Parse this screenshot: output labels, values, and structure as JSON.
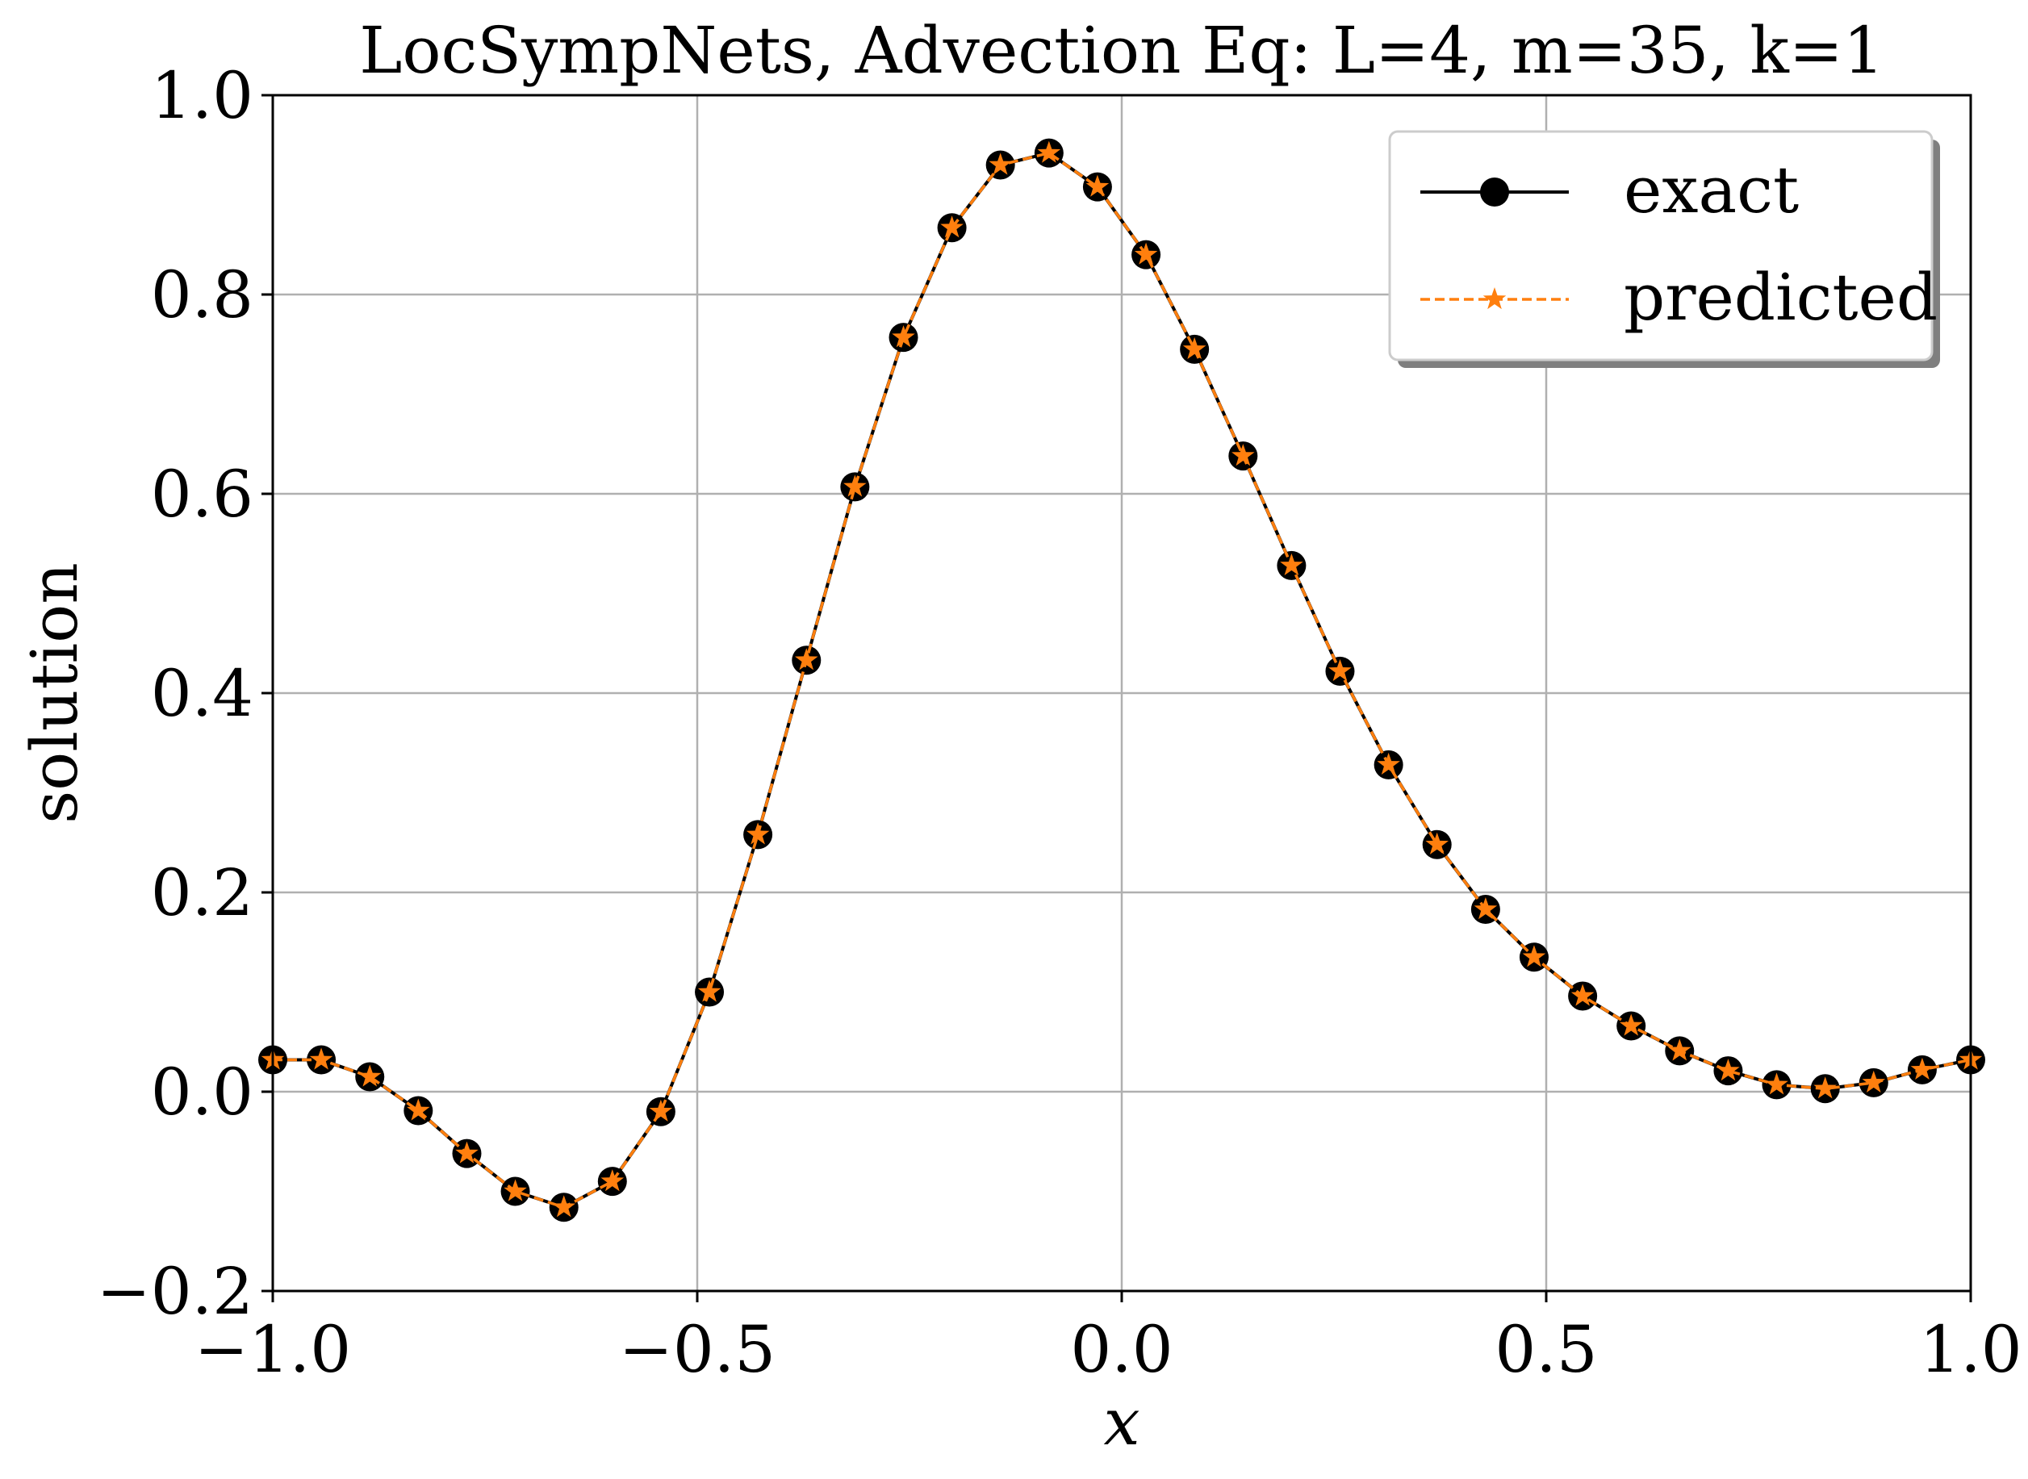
{
  "chart_data": {
    "type": "line",
    "title": "LocSympNets, Advection Eq: L=4, m=35, k=1",
    "xlabel": "x",
    "ylabel": "solution",
    "xlim": [
      -1.0,
      1.0
    ],
    "ylim": [
      -0.2,
      1.0
    ],
    "x_ticks": [
      -1.0,
      -0.5,
      0.0,
      0.5,
      1.0
    ],
    "x_tick_labels": [
      "−1.0",
      "−0.5",
      "0.0",
      "0.5",
      "1.0"
    ],
    "y_ticks": [
      -0.2,
      0.0,
      0.2,
      0.4,
      0.6,
      0.8,
      1.0
    ],
    "y_tick_labels": [
      "−0.2",
      "0.0",
      "0.2",
      "0.4",
      "0.6",
      "0.8",
      "1.0"
    ],
    "grid": true,
    "legend_position": "top-right",
    "x": [
      -1.0,
      -0.9429,
      -0.8857,
      -0.8286,
      -0.7714,
      -0.7143,
      -0.6571,
      -0.6,
      -0.5429,
      -0.4857,
      -0.4286,
      -0.3714,
      -0.3143,
      -0.2571,
      -0.2,
      -0.1429,
      -0.0857,
      -0.0286,
      0.0286,
      0.0857,
      0.1429,
      0.2,
      0.2571,
      0.3143,
      0.3714,
      0.4286,
      0.4857,
      0.5429,
      0.6,
      0.6571,
      0.7143,
      0.7714,
      0.8286,
      0.8857,
      0.9429,
      1.0
    ],
    "series": [
      {
        "name": "exact",
        "color": "#000000",
        "line_style": "solid",
        "marker": "circle",
        "values": [
          0.032,
          0.032,
          0.015,
          -0.019,
          -0.062,
          -0.1,
          -0.116,
          -0.09,
          -0.02,
          0.1,
          0.258,
          0.433,
          0.607,
          0.757,
          0.867,
          0.93,
          0.942,
          0.908,
          0.84,
          0.745,
          0.638,
          0.528,
          0.422,
          0.328,
          0.248,
          0.183,
          0.135,
          0.096,
          0.066,
          0.041,
          0.021,
          0.007,
          0.003,
          0.009,
          0.022,
          0.032
        ]
      },
      {
        "name": "predicted",
        "color": "#ff7f0e",
        "line_style": "dashed",
        "marker": "star",
        "values": [
          0.032,
          0.032,
          0.015,
          -0.019,
          -0.062,
          -0.1,
          -0.116,
          -0.09,
          -0.02,
          0.1,
          0.258,
          0.433,
          0.607,
          0.757,
          0.867,
          0.93,
          0.942,
          0.908,
          0.84,
          0.745,
          0.638,
          0.528,
          0.422,
          0.328,
          0.248,
          0.183,
          0.135,
          0.096,
          0.066,
          0.041,
          0.021,
          0.007,
          0.003,
          0.009,
          0.022,
          0.032
        ]
      }
    ]
  }
}
